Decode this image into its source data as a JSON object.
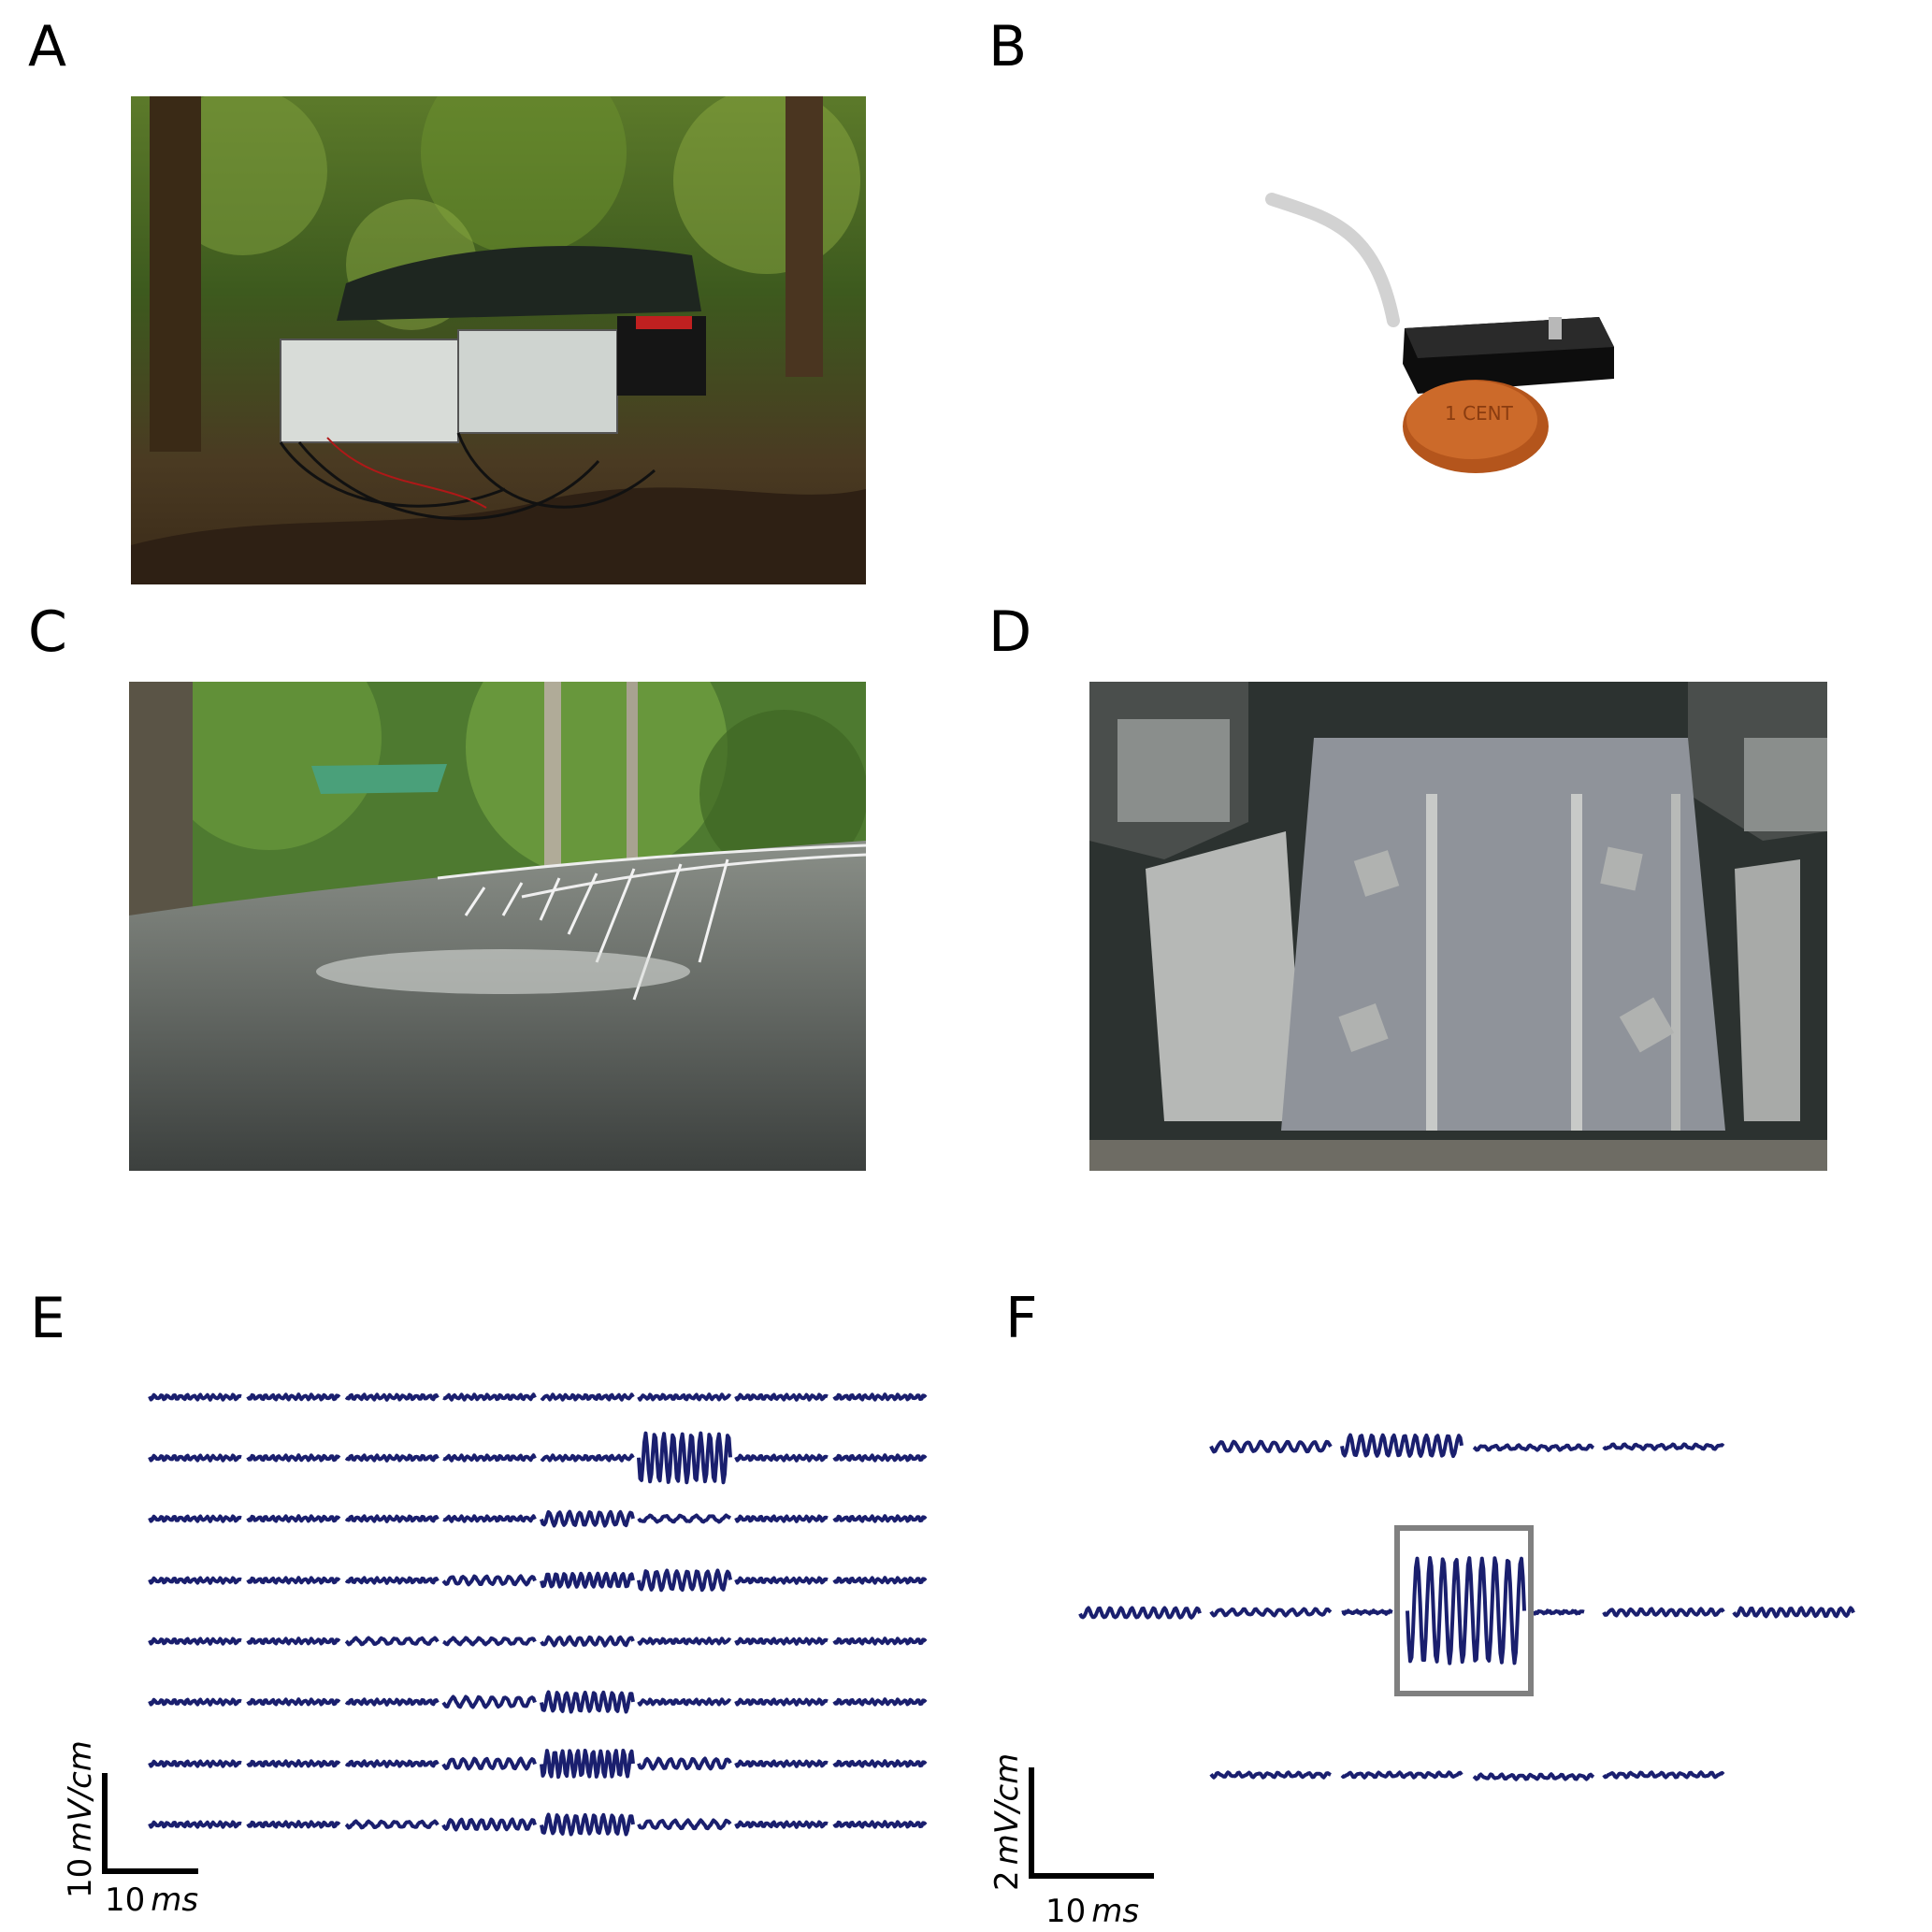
{
  "figure": {
    "panels": [
      {
        "letter": "A",
        "content": "photo",
        "subject": "field recording amplifier boxes and battery in rainforest"
      },
      {
        "letter": "B",
        "content": "photo",
        "subject": "small black electrode housing with cable next to a 1 euro cent coin"
      },
      {
        "letter": "C",
        "content": "photo",
        "subject": "electrode cables strung across a rainforest stream"
      },
      {
        "letter": "D",
        "content": "photo",
        "subject": "top view of laboratory tank with electrode strips and shelters"
      },
      {
        "letter": "E",
        "content": "traces"
      },
      {
        "letter": "F",
        "content": "traces"
      }
    ],
    "coin_text": "1 CENT",
    "colors": {
      "trace": "#1a1f6e",
      "highlight_box": "#808080",
      "scale_bar": "#000000"
    },
    "scale_E": {
      "value": "10",
      "unit": "mV/cm",
      "time_value": "10",
      "time_unit": "ms"
    },
    "scale_F": {
      "value": "2",
      "unit": "mV/cm",
      "time_value": "10",
      "time_unit": "ms"
    }
  }
}
